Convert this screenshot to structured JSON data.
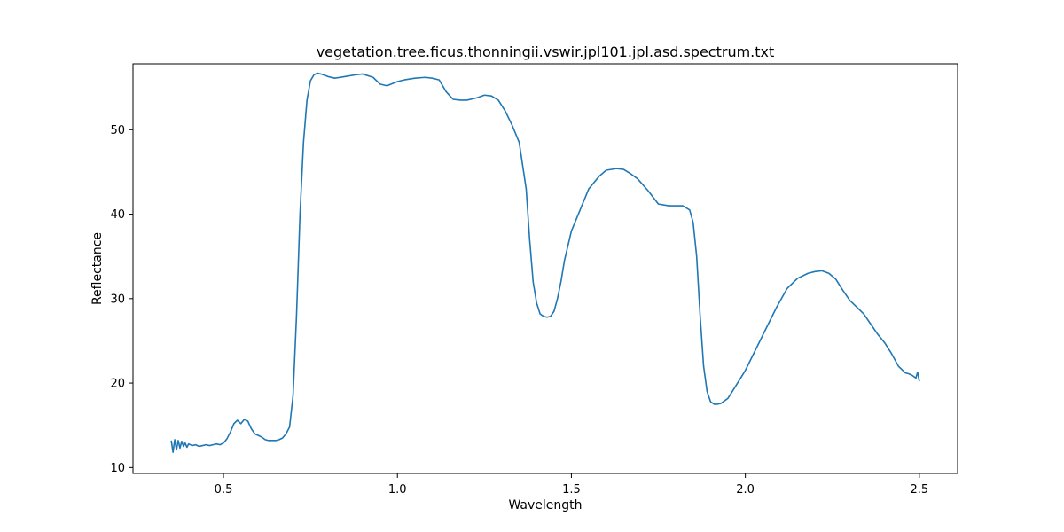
{
  "chart_data": {
    "type": "line",
    "title": "vegetation.tree.ficus.thonningii.vswir.jpl101.jpl.asd.spectrum.txt",
    "xlabel": "Wavelength",
    "ylabel": "Reflectance",
    "xlim": [
      0.24,
      2.61
    ],
    "ylim": [
      9.3,
      57.8
    ],
    "xticks": [
      0.5,
      1.0,
      1.5,
      2.0,
      2.5
    ],
    "xtick_labels": [
      "0.5",
      "1.0",
      "1.5",
      "2.0",
      "2.5"
    ],
    "yticks": [
      10,
      20,
      30,
      40,
      50
    ],
    "ytick_labels": [
      "10",
      "20",
      "30",
      "40",
      "50"
    ],
    "grid": false,
    "line_color": "#1f77b4",
    "series": [
      {
        "x": [
          0.35,
          0.355,
          0.36,
          0.365,
          0.37,
          0.375,
          0.38,
          0.385,
          0.39,
          0.395,
          0.4,
          0.41,
          0.42,
          0.43,
          0.44,
          0.45,
          0.46,
          0.47,
          0.48,
          0.49,
          0.5,
          0.51,
          0.52,
          0.53,
          0.54,
          0.55,
          0.56,
          0.57,
          0.58,
          0.59,
          0.6,
          0.61,
          0.62,
          0.63,
          0.64,
          0.65,
          0.66,
          0.67,
          0.68,
          0.69,
          0.7,
          0.71,
          0.72,
          0.73,
          0.74,
          0.75,
          0.76,
          0.77,
          0.78,
          0.8,
          0.82,
          0.85,
          0.88,
          0.9,
          0.93,
          0.95,
          0.97,
          1.0,
          1.02,
          1.05,
          1.08,
          1.1,
          1.12,
          1.14,
          1.16,
          1.18,
          1.2,
          1.23,
          1.25,
          1.27,
          1.29,
          1.31,
          1.33,
          1.35,
          1.37,
          1.38,
          1.39,
          1.4,
          1.41,
          1.42,
          1.43,
          1.44,
          1.45,
          1.46,
          1.47,
          1.48,
          1.5,
          1.52,
          1.55,
          1.58,
          1.6,
          1.63,
          1.65,
          1.67,
          1.69,
          1.72,
          1.75,
          1.78,
          1.8,
          1.82,
          1.84,
          1.85,
          1.86,
          1.87,
          1.88,
          1.89,
          1.9,
          1.91,
          1.92,
          1.93,
          1.95,
          1.97,
          2.0,
          2.03,
          2.06,
          2.09,
          2.12,
          2.15,
          2.18,
          2.2,
          2.22,
          2.24,
          2.26,
          2.28,
          2.3,
          2.32,
          2.34,
          2.36,
          2.38,
          2.4,
          2.42,
          2.44,
          2.46,
          2.47,
          2.48,
          2.49,
          2.495,
          2.5
        ],
        "y": [
          13.2,
          11.8,
          13.3,
          12.1,
          13.2,
          12.3,
          13.1,
          12.5,
          12.9,
          12.4,
          12.8,
          12.6,
          12.7,
          12.5,
          12.6,
          12.7,
          12.6,
          12.7,
          12.8,
          12.7,
          12.9,
          13.4,
          14.2,
          15.2,
          15.6,
          15.2,
          15.7,
          15.5,
          14.6,
          14.0,
          13.8,
          13.6,
          13.3,
          13.2,
          13.2,
          13.2,
          13.3,
          13.5,
          14.0,
          14.8,
          18.5,
          28.0,
          40.0,
          48.5,
          53.5,
          55.8,
          56.5,
          56.7,
          56.6,
          56.3,
          56.1,
          56.3,
          56.5,
          56.6,
          56.2,
          55.4,
          55.2,
          55.7,
          55.9,
          56.1,
          56.2,
          56.1,
          55.9,
          54.5,
          53.6,
          53.5,
          53.5,
          53.8,
          54.1,
          54.0,
          53.5,
          52.2,
          50.5,
          48.5,
          43.0,
          37.0,
          32.0,
          29.5,
          28.2,
          27.9,
          27.8,
          27.9,
          28.5,
          30.0,
          32.0,
          34.5,
          38.0,
          40.0,
          43.0,
          44.5,
          45.2,
          45.4,
          45.3,
          44.8,
          44.2,
          42.8,
          41.2,
          41.0,
          41.0,
          41.0,
          40.5,
          39.0,
          35.0,
          28.0,
          22.0,
          19.0,
          17.8,
          17.5,
          17.5,
          17.6,
          18.2,
          19.5,
          21.5,
          24.0,
          26.5,
          29.0,
          31.2,
          32.4,
          33.0,
          33.2,
          33.3,
          33.0,
          32.3,
          31.0,
          29.8,
          29.0,
          28.2,
          27.0,
          25.8,
          24.8,
          23.5,
          22.0,
          21.2,
          21.1,
          20.9,
          20.6,
          21.3,
          20.2
        ]
      }
    ]
  }
}
